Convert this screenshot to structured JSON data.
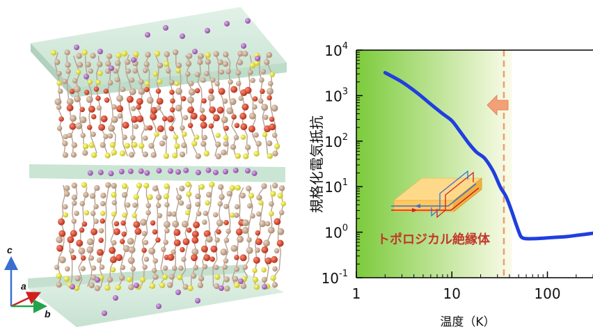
{
  "structure_panel": {
    "axes": {
      "c": "c",
      "a": "a",
      "b": "b"
    },
    "colors": {
      "slab": "#cfe6d8",
      "slab_edge": "#a9cbb6",
      "atom_red": "#d2422a",
      "atom_yellow": "#e6e22a",
      "atom_tan": "#c9a88e",
      "atom_purple": "#b06ac0",
      "axis_c": "#3a6fd0",
      "axis_a": "#d02020",
      "axis_b": "#23a34a"
    }
  },
  "chart_data": {
    "type": "line",
    "xlabel": "温度（K）",
    "ylabel": "規格化電気抵抗",
    "xscale": "log",
    "yscale": "log",
    "xlim": [
      1,
      300
    ],
    "ylim": [
      0.1,
      10000
    ],
    "x_ticks": [
      1,
      10,
      100
    ],
    "x_tick_labels": [
      "1",
      "10",
      "100"
    ],
    "y_ticks": [
      0.1,
      1,
      10,
      100,
      1000,
      10000
    ],
    "y_tick_labels": [
      {
        "base": "10",
        "exp": "-1"
      },
      {
        "base": "10",
        "exp": "0"
      },
      {
        "base": "10",
        "exp": "1"
      },
      {
        "base": "10",
        "exp": "2"
      },
      {
        "base": "10",
        "exp": "3"
      },
      {
        "base": "10",
        "exp": "4"
      }
    ],
    "series": [
      {
        "color": "#1f3fe0",
        "x": [
          2,
          3,
          4,
          5,
          6,
          8,
          10,
          12,
          15,
          18,
          22,
          27,
          32,
          37,
          42,
          47,
          52,
          55,
          60,
          70,
          90,
          120,
          160,
          200,
          250,
          300
        ],
        "y": [
          3200,
          2000,
          1300,
          900,
          650,
          400,
          280,
          170,
          90,
          58,
          42,
          22,
          10,
          6,
          3,
          1.5,
          0.85,
          0.75,
          0.72,
          0.72,
          0.74,
          0.77,
          0.8,
          0.85,
          0.9,
          0.95
        ]
      }
    ],
    "annotations": {
      "region_label": "トポロジカル絶縁体",
      "transition_temperature": 35
    },
    "colors": {
      "region_gradient_start": "#7ccb3c",
      "region_gradient_end": "#fbfbea",
      "dashed_line": "#e8a070",
      "arrow": "#f2a078",
      "region_label": "#c0392b"
    }
  }
}
